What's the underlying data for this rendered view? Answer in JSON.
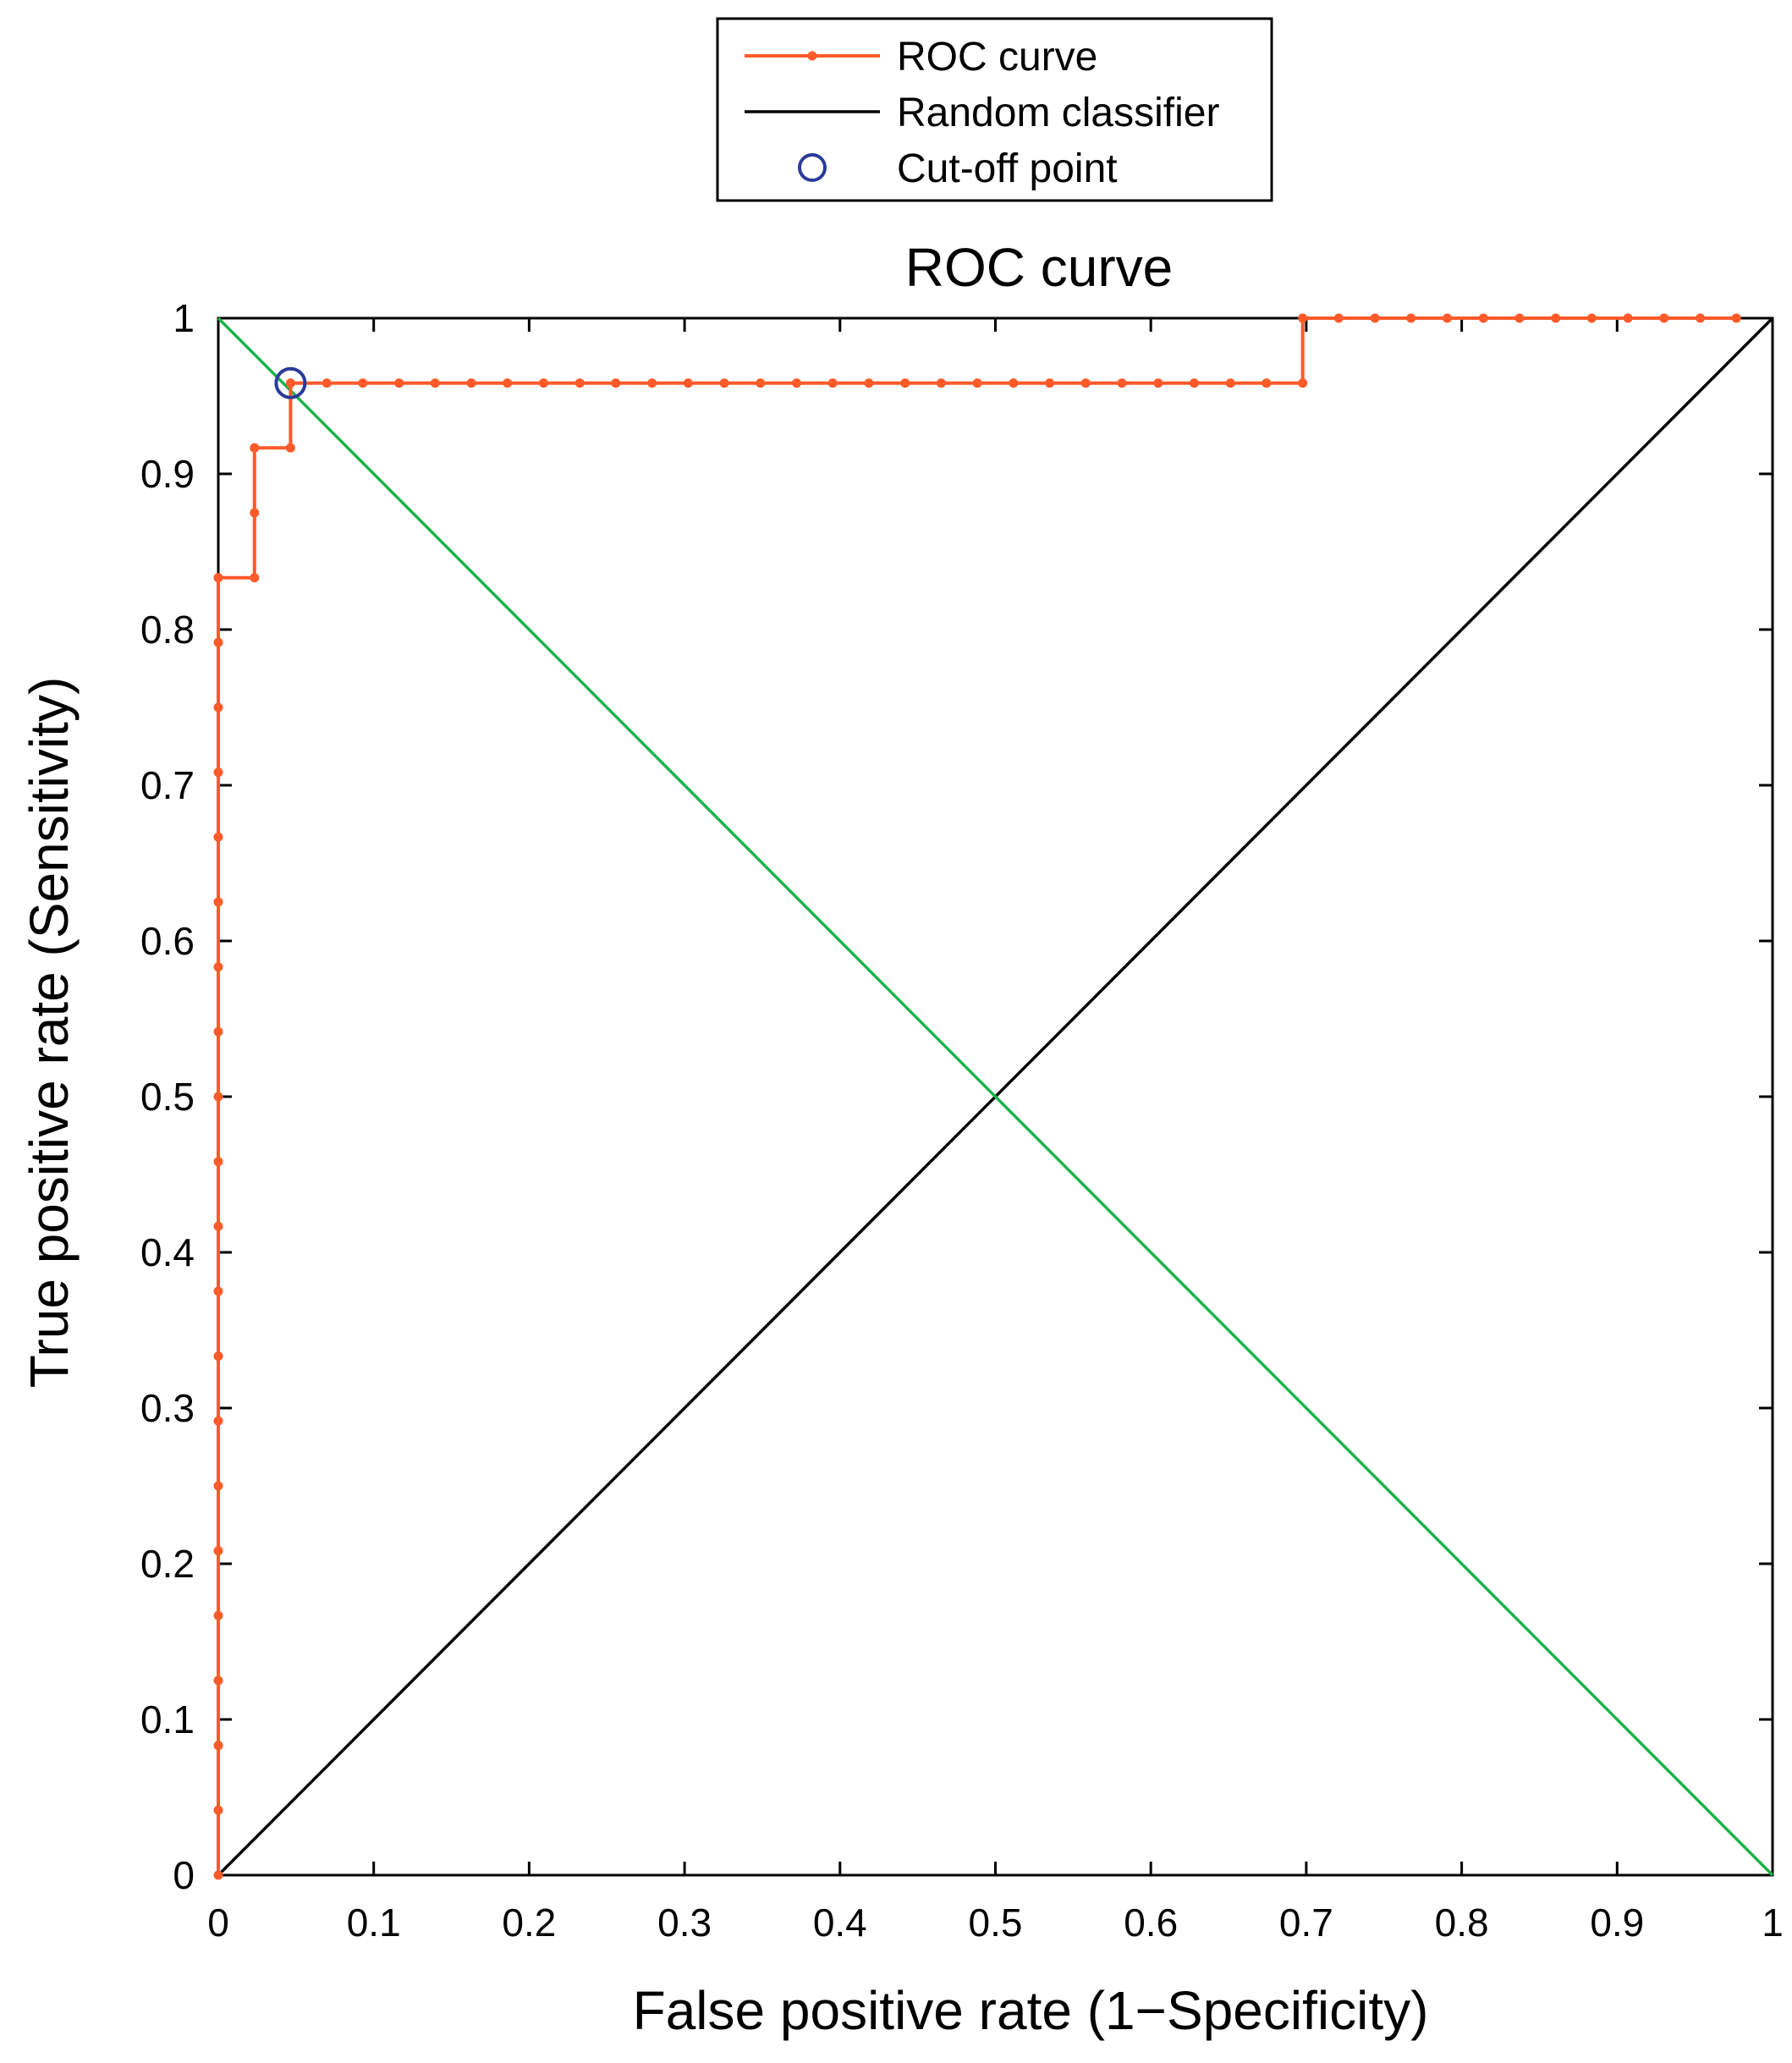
{
  "chart_data": {
    "type": "line",
    "title": "ROC curve",
    "xlabel": "False positive rate (1−Specificity)",
    "ylabel": "True positive rate (Sensitivity)",
    "xlim": [
      0,
      1
    ],
    "ylim": [
      0,
      1
    ],
    "xticks": [
      0,
      0.1,
      0.2,
      0.3,
      0.4,
      0.5,
      0.6,
      0.7,
      0.8,
      0.9,
      1
    ],
    "xtick_labels": [
      "0",
      "0.1",
      "0.2",
      "0.3",
      "0.4",
      "0.5",
      "0.6",
      "0.7",
      "0.8",
      "0.9",
      "1"
    ],
    "yticks": [
      0,
      0.1,
      0.2,
      0.3,
      0.4,
      0.5,
      0.6,
      0.7,
      0.8,
      0.9,
      1
    ],
    "ytick_labels": [
      "0",
      "0.1",
      "0.2",
      "0.3",
      "0.4",
      "0.5",
      "0.6",
      "0.7",
      "0.8",
      "0.9",
      "1"
    ],
    "grid": false,
    "legend_position": "top-center-outside",
    "legend": [
      {
        "label": "ROC curve",
        "marker": "line-dot",
        "color": "#ff5a2a"
      },
      {
        "label": "Random classifier",
        "marker": "line",
        "color": "#000000"
      },
      {
        "label": "Cut-off point",
        "marker": "circle",
        "color": "#2a3c9a"
      }
    ],
    "series": [
      {
        "name": "ROC curve",
        "color": "#ff5a2a",
        "x": [
          0,
          0,
          0,
          0,
          0,
          0,
          0,
          0,
          0,
          0,
          0,
          0,
          0,
          0,
          0,
          0,
          0,
          0,
          0,
          0,
          0,
          0,
          0.0233,
          0.0233,
          0.0233,
          0.0465,
          0.0465,
          0.0698,
          0.093,
          0.1163,
          0.1395,
          0.1628,
          0.186,
          0.2093,
          0.2326,
          0.2558,
          0.2791,
          0.3023,
          0.3256,
          0.3488,
          0.3721,
          0.3953,
          0.4186,
          0.4419,
          0.4651,
          0.4884,
          0.5116,
          0.5349,
          0.5581,
          0.5814,
          0.6047,
          0.6279,
          0.6512,
          0.6744,
          0.6977,
          0.6977,
          0.7209,
          0.7442,
          0.7674,
          0.7907,
          0.814,
          0.8372,
          0.8605,
          0.8837,
          0.907,
          0.9302,
          0.9535,
          0.9767
        ],
        "y": [
          0,
          0.0417,
          0.0833,
          0.125,
          0.1667,
          0.2083,
          0.25,
          0.2917,
          0.3333,
          0.375,
          0.4167,
          0.4583,
          0.5,
          0.5417,
          0.5833,
          0.625,
          0.6667,
          0.7083,
          0.75,
          0.7917,
          0.8333,
          0.8333,
          0.8333,
          0.875,
          0.9167,
          0.9167,
          0.9583,
          0.9583,
          0.9583,
          0.9583,
          0.9583,
          0.9583,
          0.9583,
          0.9583,
          0.9583,
          0.9583,
          0.9583,
          0.9583,
          0.9583,
          0.9583,
          0.9583,
          0.9583,
          0.9583,
          0.9583,
          0.9583,
          0.9583,
          0.9583,
          0.9583,
          0.9583,
          0.9583,
          0.9583,
          0.9583,
          0.9583,
          0.9583,
          0.9583,
          1,
          1,
          1,
          1,
          1,
          1,
          1,
          1,
          1,
          1,
          1,
          1,
          1
        ]
      },
      {
        "name": "Random classifier",
        "color": "#000000",
        "x": [
          0,
          1
        ],
        "y": [
          0,
          1
        ]
      },
      {
        "name": "Reference diagonal",
        "color": "#1db34a",
        "x": [
          0,
          1
        ],
        "y": [
          1,
          0
        ]
      }
    ],
    "cutoff_point": {
      "name": "Cut-off point",
      "x": 0.0465,
      "y": 0.9583,
      "color": "#2a3c9a"
    }
  }
}
